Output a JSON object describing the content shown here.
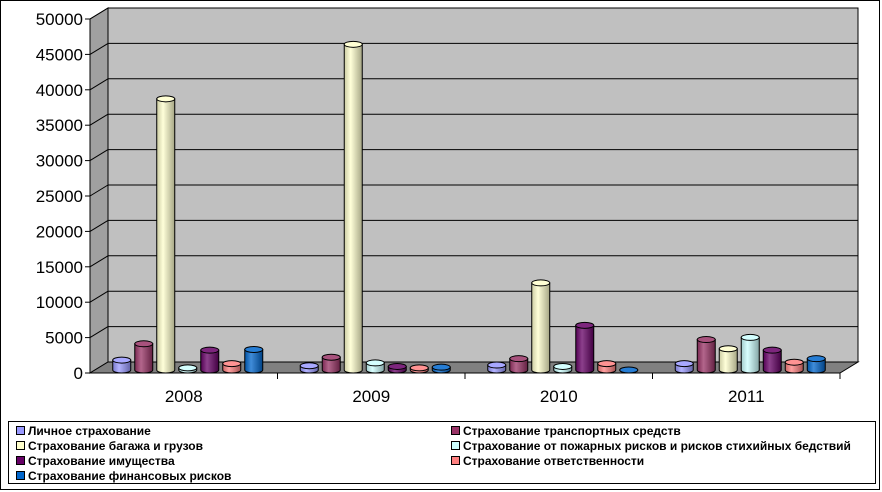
{
  "chart_data": {
    "type": "bar",
    "categories": [
      "2008",
      "2009",
      "2010",
      "2011"
    ],
    "series": [
      {
        "name": "Личное страхование",
        "color": "#9999FF",
        "values": [
          1400,
          600,
          700,
          900
        ]
      },
      {
        "name": "Страхование транспортных средств",
        "color": "#993366",
        "values": [
          3700,
          1800,
          1600,
          4300
        ]
      },
      {
        "name": "Страхование багажа и грузов",
        "color": "#FFFFCC",
        "values": [
          38300,
          46000,
          12300,
          3000
        ]
      },
      {
        "name": "Страхование от пожарных рисков и рисков стихийных бедствий",
        "color": "#CCFFFF",
        "values": [
          300,
          1000,
          500,
          4600
        ]
      },
      {
        "name": "Страхование имущества",
        "color": "#660066",
        "values": [
          2800,
          500,
          6300,
          2800
        ]
      },
      {
        "name": "Страхование ответственности",
        "color": "#FF8080",
        "values": [
          900,
          300,
          900,
          1100
        ]
      },
      {
        "name": "Страхование финансовых рисков",
        "color": "#0066CC",
        "values": [
          2900,
          400,
          0,
          1600
        ]
      }
    ],
    "ylim": [
      0,
      50000
    ],
    "yticks": [
      "0",
      "5000",
      "10000",
      "15000",
      "20000",
      "25000",
      "30000",
      "35000",
      "40000",
      "45000",
      "50000"
    ],
    "grid": true,
    "legend_position": "bottom",
    "wall_color": "#C0C0C0",
    "floor_color": "#808080"
  }
}
